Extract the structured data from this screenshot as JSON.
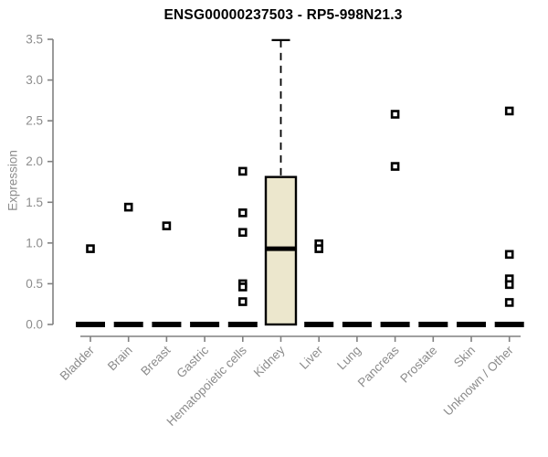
{
  "chart_data": {
    "type": "boxplot",
    "title": "ENSG00000237503 - RP5-998N21.3",
    "ylabel": "Expression",
    "xlabel": "",
    "ylim": [
      0,
      3.5
    ],
    "yticks": [
      0.0,
      0.5,
      1.0,
      1.5,
      2.0,
      2.5,
      3.0,
      3.5
    ],
    "grid": false,
    "legend": "none",
    "colors": {
      "box_fill": "#ECE7CD",
      "box_stroke": "#000000",
      "axis_line": "#808080",
      "tick_label": "#8c8c8c",
      "title": "#000000"
    },
    "categories": [
      "Bladder",
      "Brain",
      "Breast",
      "Gastric",
      "Hematopoietic cells",
      "Kidney",
      "Liver",
      "Lung",
      "Pancreas",
      "Prostate",
      "Skin",
      "Unknown / Other"
    ],
    "boxes": [
      {
        "category": "Bladder",
        "q1": 0,
        "median": 0,
        "q3": 0,
        "whisker_low": 0,
        "whisker_high": 0,
        "outliers": [
          0.93
        ]
      },
      {
        "category": "Brain",
        "q1": 0,
        "median": 0,
        "q3": 0,
        "whisker_low": 0,
        "whisker_high": 0,
        "outliers": [
          1.44
        ]
      },
      {
        "category": "Breast",
        "q1": 0,
        "median": 0,
        "q3": 0,
        "whisker_low": 0,
        "whisker_high": 0,
        "outliers": [
          1.21
        ]
      },
      {
        "category": "Gastric",
        "q1": 0,
        "median": 0,
        "q3": 0,
        "whisker_low": 0,
        "whisker_high": 0,
        "outliers": []
      },
      {
        "category": "Hematopoietic cells",
        "q1": 0,
        "median": 0,
        "q3": 0,
        "whisker_low": 0,
        "whisker_high": 0,
        "outliers": [
          1.88,
          1.37,
          1.13,
          0.5,
          0.46,
          0.28
        ]
      },
      {
        "category": "Kidney",
        "q1": 0,
        "median": 0.93,
        "q3": 1.81,
        "whisker_low": 0,
        "whisker_high": 3.49,
        "outliers": []
      },
      {
        "category": "Liver",
        "q1": 0,
        "median": 0,
        "q3": 0,
        "whisker_low": 0,
        "whisker_high": 0,
        "outliers": [
          0.99,
          0.93
        ]
      },
      {
        "category": "Lung",
        "q1": 0,
        "median": 0,
        "q3": 0,
        "whisker_low": 0,
        "whisker_high": 0,
        "outliers": []
      },
      {
        "category": "Pancreas",
        "q1": 0,
        "median": 0,
        "q3": 0,
        "whisker_low": 0,
        "whisker_high": 0,
        "outliers": [
          2.58,
          1.94
        ]
      },
      {
        "category": "Prostate",
        "q1": 0,
        "median": 0,
        "q3": 0,
        "whisker_low": 0,
        "whisker_high": 0,
        "outliers": []
      },
      {
        "category": "Skin",
        "q1": 0,
        "median": 0,
        "q3": 0,
        "whisker_low": 0,
        "whisker_high": 0,
        "outliers": []
      },
      {
        "category": "Unknown / Other",
        "q1": 0,
        "median": 0,
        "q3": 0,
        "whisker_low": 0,
        "whisker_high": 0,
        "outliers": [
          2.62,
          0.86,
          0.56,
          0.49,
          0.27
        ]
      }
    ]
  }
}
